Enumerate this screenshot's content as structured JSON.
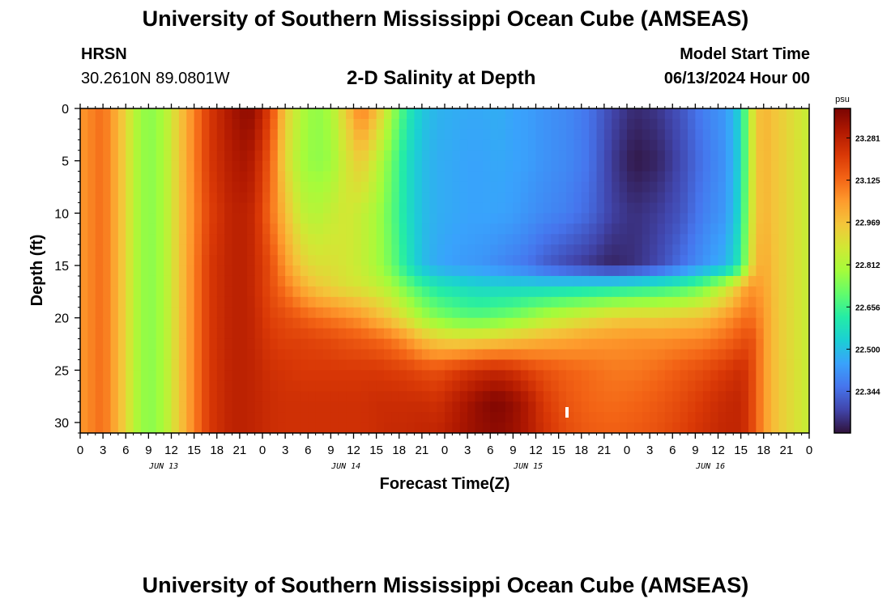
{
  "header": {
    "title": "University of Southern Mississippi Ocean Cube (AMSEAS)",
    "station": "HRSN",
    "coords": "30.2610N  89.0801W",
    "start_label": "Model Start Time",
    "start_value": "06/13/2024 Hour 00"
  },
  "footer": {
    "title": "University of Southern Mississippi Ocean Cube (AMSEAS)"
  },
  "colors": {
    "colormap": [
      "#30123b",
      "#4145ab",
      "#4675ed",
      "#39a2fc",
      "#1bcfd4",
      "#24eca6",
      "#61fc6c",
      "#a4fc3b",
      "#d1e834",
      "#f3c63a",
      "#fe9b2d",
      "#f36315",
      "#d93806",
      "#b11901",
      "#7a0402"
    ]
  },
  "chart_data": {
    "type": "heatmap",
    "title": "2-D Salinity at Depth",
    "xlabel": "Forecast Time(Z)",
    "ylabel": "Depth (ft)",
    "x_ticks": [
      "0",
      "3",
      "6",
      "9",
      "12",
      "15",
      "18",
      "21",
      "0",
      "3",
      "6",
      "9",
      "12",
      "15",
      "18",
      "21",
      "0",
      "3",
      "6",
      "9",
      "12",
      "15",
      "18",
      "21",
      "0",
      "3",
      "6",
      "9",
      "12",
      "15",
      "18",
      "21",
      "0"
    ],
    "date_labels": [
      "JUN 13",
      "JUN 14",
      "JUN 15",
      "JUN 16"
    ],
    "xlim_hours": [
      0,
      96
    ],
    "ylim": [
      0,
      31
    ],
    "y_ticks": [
      0,
      5,
      10,
      15,
      20,
      25,
      30
    ],
    "colorbar": {
      "unit": "psu",
      "min": 22.19,
      "max": 23.39,
      "ticks": [
        "23.281",
        "23.125",
        "22.969",
        "22.812",
        "22.656",
        "22.500",
        "22.344"
      ]
    },
    "depths": [
      0,
      5,
      10,
      15,
      17,
      20,
      22,
      25,
      28,
      31
    ],
    "times": [
      0,
      3,
      6,
      7,
      9,
      11,
      13,
      17,
      20,
      22,
      23,
      25,
      27,
      29,
      31,
      33,
      35,
      37,
      39,
      41,
      43,
      45,
      47,
      49,
      51,
      53,
      55,
      57,
      59,
      61,
      64,
      67,
      70,
      73,
      76,
      79,
      82,
      85,
      87,
      88,
      89,
      90,
      92,
      94,
      96
    ],
    "values": [
      [
        23.05,
        23.12,
        22.93,
        22.83,
        22.75,
        22.8,
        22.95,
        23.22,
        23.32,
        23.36,
        23.34,
        23.2,
        22.95,
        22.82,
        22.76,
        22.8,
        22.95,
        23.1,
        22.98,
        22.8,
        22.62,
        22.52,
        22.48,
        22.47,
        22.46,
        22.46,
        22.47,
        22.45,
        22.44,
        22.42,
        22.4,
        22.36,
        22.28,
        22.23,
        22.25,
        22.3,
        22.38,
        22.43,
        22.55,
        22.8,
        22.95,
        23.0,
        22.95,
        22.9,
        22.85
      ],
      [
        23.05,
        23.12,
        22.93,
        22.83,
        22.75,
        22.8,
        22.95,
        23.22,
        23.3,
        23.32,
        23.28,
        23.15,
        22.92,
        22.8,
        22.76,
        22.78,
        22.88,
        22.95,
        22.85,
        22.72,
        22.58,
        22.5,
        22.47,
        22.46,
        22.45,
        22.45,
        22.46,
        22.45,
        22.44,
        22.42,
        22.4,
        22.36,
        22.26,
        22.2,
        22.22,
        22.28,
        22.36,
        22.42,
        22.55,
        22.8,
        22.95,
        23.0,
        22.95,
        22.9,
        22.85
      ],
      [
        23.05,
        23.12,
        22.93,
        22.83,
        22.75,
        22.8,
        22.95,
        23.2,
        23.28,
        23.28,
        23.25,
        23.12,
        22.98,
        22.85,
        22.82,
        22.85,
        22.88,
        22.85,
        22.8,
        22.7,
        22.58,
        22.5,
        22.47,
        22.46,
        22.45,
        22.45,
        22.45,
        22.44,
        22.42,
        22.4,
        22.38,
        22.34,
        22.27,
        22.24,
        22.26,
        22.3,
        22.38,
        22.43,
        22.57,
        22.82,
        22.95,
        23.0,
        22.95,
        22.9,
        22.85
      ],
      [
        23.05,
        23.12,
        22.93,
        22.83,
        22.75,
        22.8,
        22.95,
        23.22,
        23.28,
        23.28,
        23.25,
        23.18,
        23.05,
        22.95,
        22.9,
        22.9,
        22.88,
        22.85,
        22.8,
        22.72,
        22.6,
        22.5,
        22.46,
        22.44,
        22.43,
        22.42,
        22.4,
        22.38,
        22.36,
        22.32,
        22.28,
        22.25,
        22.22,
        22.24,
        22.28,
        22.35,
        22.42,
        22.48,
        22.62,
        22.85,
        22.98,
        23.02,
        22.95,
        22.9,
        22.85
      ],
      [
        23.05,
        23.12,
        22.93,
        22.83,
        22.75,
        22.8,
        22.95,
        23.22,
        23.28,
        23.28,
        23.25,
        23.18,
        23.1,
        23.02,
        22.96,
        22.93,
        22.9,
        22.88,
        22.85,
        22.8,
        22.72,
        22.65,
        22.6,
        22.58,
        22.56,
        22.55,
        22.55,
        22.55,
        22.55,
        22.55,
        22.56,
        22.57,
        22.58,
        22.6,
        22.62,
        22.65,
        22.72,
        22.85,
        22.98,
        23.05,
        23.05,
        23.03,
        22.95,
        22.9,
        22.85
      ],
      [
        23.05,
        23.12,
        22.93,
        22.83,
        22.75,
        22.8,
        22.95,
        23.22,
        23.28,
        23.28,
        23.26,
        23.2,
        23.18,
        23.15,
        23.12,
        23.1,
        23.08,
        23.05,
        23.0,
        22.95,
        22.88,
        22.8,
        22.75,
        22.72,
        22.7,
        22.7,
        22.72,
        22.74,
        22.78,
        22.82,
        22.86,
        22.9,
        22.94,
        22.95,
        22.95,
        22.96,
        22.98,
        23.05,
        23.1,
        23.12,
        23.1,
        23.05,
        22.95,
        22.9,
        22.85
      ],
      [
        23.05,
        23.12,
        22.93,
        22.83,
        22.75,
        22.8,
        22.95,
        23.22,
        23.28,
        23.28,
        23.26,
        23.22,
        23.2,
        23.2,
        23.19,
        23.18,
        23.16,
        23.15,
        23.13,
        23.1,
        23.05,
        22.98,
        22.94,
        22.92,
        22.92,
        22.93,
        22.94,
        22.96,
        22.98,
        23.0,
        23.02,
        23.04,
        23.05,
        23.06,
        23.06,
        23.07,
        23.08,
        23.12,
        23.16,
        23.18,
        23.15,
        23.05,
        22.95,
        22.9,
        22.85
      ],
      [
        23.05,
        23.12,
        22.93,
        22.83,
        22.75,
        22.8,
        22.95,
        23.22,
        23.28,
        23.28,
        23.27,
        23.24,
        23.23,
        23.22,
        23.22,
        23.22,
        23.22,
        23.22,
        23.22,
        23.21,
        23.2,
        23.18,
        23.17,
        23.2,
        23.23,
        23.25,
        23.26,
        23.24,
        23.2,
        23.17,
        23.14,
        23.12,
        23.1,
        23.1,
        23.12,
        23.15,
        23.18,
        23.22,
        23.25,
        23.22,
        23.15,
        23.05,
        22.95,
        22.9,
        22.85
      ],
      [
        23.05,
        23.12,
        22.93,
        22.83,
        22.75,
        22.8,
        22.95,
        23.22,
        23.28,
        23.28,
        23.27,
        23.25,
        23.24,
        23.24,
        23.24,
        23.24,
        23.24,
        23.24,
        23.25,
        23.25,
        23.25,
        23.25,
        23.24,
        23.28,
        23.32,
        23.36,
        23.38,
        23.35,
        23.3,
        23.22,
        23.16,
        23.13,
        23.12,
        23.13,
        23.15,
        23.18,
        23.22,
        23.26,
        23.27,
        23.22,
        23.15,
        23.05,
        22.95,
        22.9,
        22.85
      ],
      [
        23.05,
        23.12,
        22.93,
        22.83,
        22.75,
        22.8,
        22.95,
        23.22,
        23.28,
        23.28,
        23.27,
        23.25,
        23.24,
        23.24,
        23.24,
        23.24,
        23.24,
        23.24,
        23.25,
        23.26,
        23.26,
        23.27,
        23.27,
        23.3,
        23.33,
        23.35,
        23.36,
        23.34,
        23.3,
        23.24,
        23.18,
        23.15,
        23.14,
        23.15,
        23.17,
        23.2,
        23.24,
        23.27,
        23.27,
        23.22,
        23.15,
        23.05,
        22.95,
        22.9,
        22.85
      ]
    ]
  }
}
